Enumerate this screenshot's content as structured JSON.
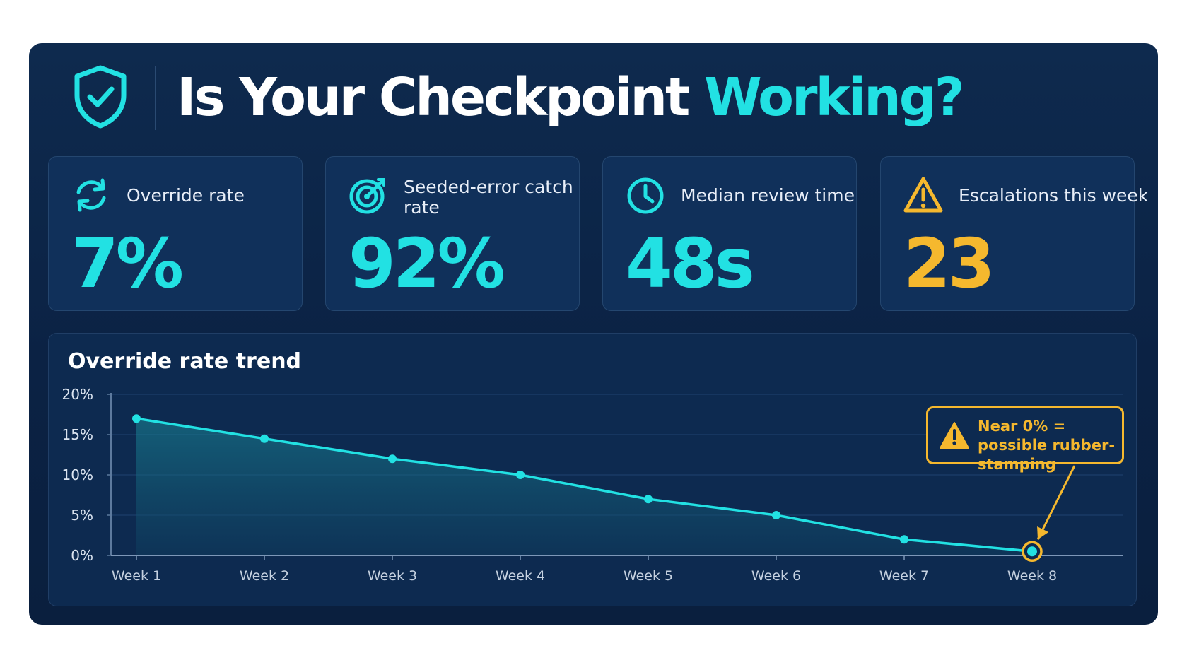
{
  "header": {
    "title_main": "Is Your Checkpoint",
    "title_accent": "Working?",
    "icon": "shield-check-icon"
  },
  "cards": [
    {
      "label": "Override rate",
      "value": "7%",
      "icon": "refresh-arrows-icon",
      "value_color": "#22e1e3"
    },
    {
      "label": "Seeded-error catch rate",
      "value": "92%",
      "icon": "target-icon",
      "value_color": "#22e1e3"
    },
    {
      "label": "Median review time",
      "value": "48s",
      "icon": "clock-icon",
      "value_color": "#22e1e3"
    },
    {
      "label": "Escalations this week",
      "value": "23",
      "icon": "warning-triangle-icon",
      "value_color": "#f5b82e"
    }
  ],
  "chart_data": {
    "type": "area",
    "title": "Override rate trend",
    "categories": [
      "Week 1",
      "Week 2",
      "Week 3",
      "Week 4",
      "Week 5",
      "Week 6",
      "Week 7",
      "Week 8"
    ],
    "values": [
      17,
      14.5,
      12,
      10,
      7,
      5,
      2,
      0.5
    ],
    "y_ticks": [
      "0%",
      "5%",
      "10%",
      "15%",
      "20%"
    ],
    "ylim": [
      0,
      20
    ],
    "grid": true,
    "line_color": "#22e1e3",
    "annotation": {
      "text": "Near 0% = possible rubber-stamping",
      "target": "Week 8",
      "color": "#f5b82e",
      "icon": "warning-triangle-icon"
    }
  },
  "colors": {
    "accent": "#22e1e3",
    "warning": "#f5b82e",
    "panel": "#0b2244"
  }
}
